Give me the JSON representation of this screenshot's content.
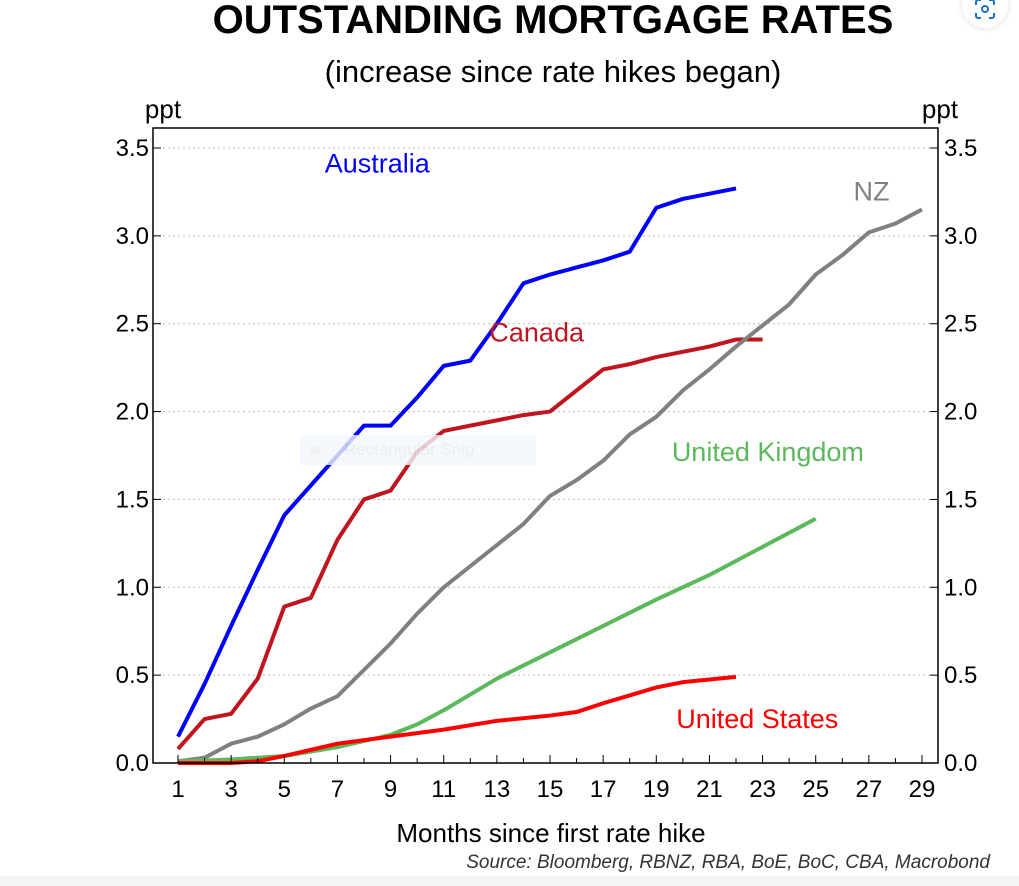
{
  "chart_data": {
    "type": "line",
    "title": "OUTSTANDING MORTGAGE RATES",
    "subtitle": "(increase since rate hikes began)",
    "xlabel": "Months since first rate hike",
    "ylabel_left": "ppt",
    "ylabel_right": "ppt",
    "source": "Source: Bloomberg, RBNZ, RBA, BoE, BoC, CBA, Macrobond",
    "xlim": [
      1,
      29
    ],
    "ylim": [
      0,
      3.5
    ],
    "x_ticks": [
      1,
      3,
      5,
      7,
      9,
      11,
      13,
      15,
      17,
      19,
      21,
      23,
      25,
      27,
      29
    ],
    "y_ticks": [
      "0.0",
      "0.5",
      "1.0",
      "1.5",
      "2.0",
      "2.5",
      "3.0",
      "3.5"
    ],
    "grid": true,
    "series": [
      {
        "name": "Australia",
        "color": "#0000ff",
        "x": [
          1,
          2,
          3,
          4,
          5,
          6,
          7,
          8,
          9,
          10,
          11,
          12,
          13,
          14,
          15,
          16,
          17,
          18,
          19,
          20,
          21,
          22
        ],
        "values": [
          0.15,
          0.45,
          0.78,
          1.1,
          1.41,
          1.58,
          1.75,
          1.92,
          1.92,
          2.08,
          2.26,
          2.29,
          2.5,
          2.73,
          2.78,
          2.82,
          2.86,
          2.91,
          3.16,
          3.21,
          3.24,
          3.27
        ],
        "label_value": [
          8.5,
          3.36
        ]
      },
      {
        "name": "Canada",
        "color": "#c0141e",
        "x": [
          1,
          2,
          3,
          4,
          5,
          6,
          7,
          8,
          9,
          10,
          11,
          12,
          13,
          14,
          15,
          16,
          17,
          18,
          19,
          20,
          21,
          22,
          23
        ],
        "values": [
          0.08,
          0.25,
          0.28,
          0.48,
          0.89,
          0.94,
          1.27,
          1.5,
          1.55,
          1.77,
          1.89,
          1.92,
          1.95,
          1.98,
          2.0,
          2.12,
          2.24,
          2.27,
          2.31,
          2.34,
          2.37,
          2.41,
          2.41
        ],
        "label_value": [
          14.5,
          2.4
        ]
      },
      {
        "name": "NZ",
        "color": "#808080",
        "x": [
          1,
          2,
          3,
          4,
          5,
          6,
          7,
          8,
          9,
          10,
          11,
          12,
          13,
          14,
          15,
          16,
          17,
          18,
          19,
          20,
          21,
          22,
          23,
          24,
          25,
          26,
          27,
          28,
          29
        ],
        "values": [
          0.01,
          0.03,
          0.11,
          0.15,
          0.22,
          0.31,
          0.38,
          0.53,
          0.68,
          0.85,
          1.0,
          1.12,
          1.24,
          1.36,
          1.52,
          1.61,
          1.72,
          1.87,
          1.97,
          2.12,
          2.24,
          2.37,
          2.49,
          2.61,
          2.78,
          2.89,
          3.02,
          3.07,
          3.15
        ],
        "label_value": [
          27.1,
          3.2
        ]
      },
      {
        "name": "United Kingdom",
        "color": "#5cb85c",
        "x": [
          1,
          3,
          5,
          7,
          9,
          10,
          11,
          13,
          15,
          17,
          19,
          21,
          23,
          25
        ],
        "values": [
          0.01,
          0.02,
          0.04,
          0.09,
          0.16,
          0.22,
          0.3,
          0.48,
          0.63,
          0.78,
          0.93,
          1.07,
          1.23,
          1.39
        ],
        "label_value": [
          23.2,
          1.72
        ]
      },
      {
        "name": "United States",
        "color": "#ff0000",
        "x": [
          1,
          3,
          4,
          5,
          7,
          9,
          11,
          13,
          15,
          16,
          17,
          19,
          20,
          22
        ],
        "values": [
          0,
          0,
          0.01,
          0.04,
          0.11,
          0.15,
          0.19,
          0.24,
          0.27,
          0.29,
          0.34,
          0.43,
          0.46,
          0.49
        ],
        "label_value": [
          22.8,
          0.2
        ]
      }
    ]
  },
  "overlay": {
    "snip_label": "Rectangular Snip"
  }
}
